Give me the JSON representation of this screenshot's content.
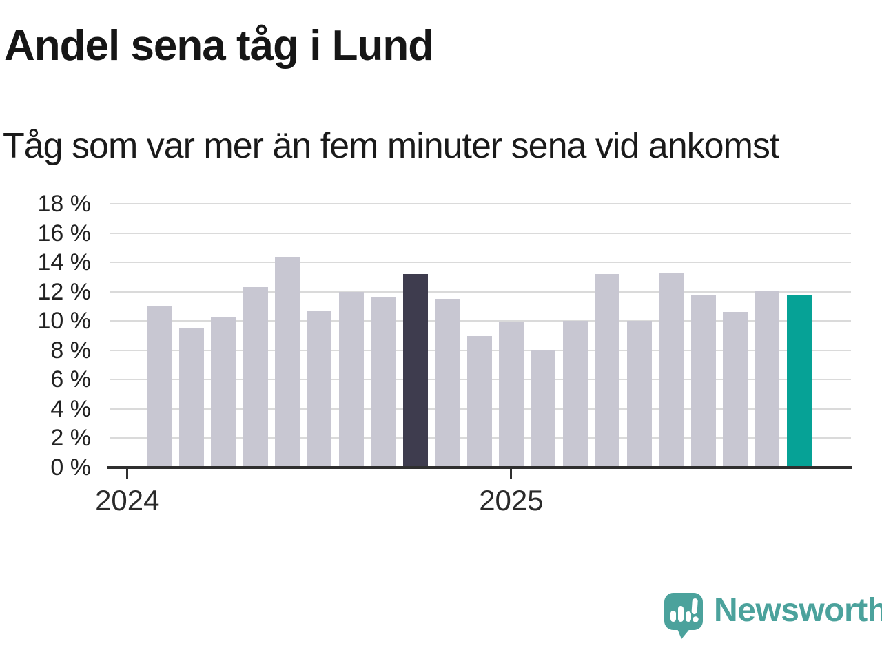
{
  "header": {
    "title": "Andel sena tåg i Lund",
    "subtitle": "Tåg som var mer än fem minuter sena vid ankomst"
  },
  "branding": {
    "wordmark": "Newsworthy",
    "logo_icon": "speech-bubble-with-bar-chart-and-exclamation"
  },
  "colors": {
    "background": "#ffffff",
    "bar_default": "#c8c7d2",
    "bar_dark_highlight": "#3e3c4e",
    "bar_teal_highlight": "#06a296",
    "gridline": "#dadada",
    "axis": "#2f2f2f",
    "title_text": "#161616",
    "tick_label": "#222222",
    "logo_teal": "#4ba29c"
  },
  "chart_data": {
    "type": "bar",
    "title": "Andel sena tåg i Lund",
    "subtitle": "Tåg som var mer än fem minuter sena vid ankomst",
    "xlabel": "",
    "ylabel": "",
    "unit": "%",
    "ylim": [
      0,
      18
    ],
    "grid": "horizontal",
    "legend_position": "none",
    "y_tick_values": [
      0,
      2,
      4,
      6,
      8,
      10,
      12,
      14,
      16,
      18
    ],
    "y_tick_suffix": " %",
    "x_axis_ticks": [
      {
        "label": "2024",
        "month_index": 0
      },
      {
        "label": "2025",
        "month_index": 12
      }
    ],
    "categories": [
      "2024-01",
      "2024-02",
      "2024-03",
      "2024-04",
      "2024-05",
      "2024-06",
      "2024-07",
      "2024-08",
      "2024-09",
      "2024-10",
      "2024-11",
      "2024-12",
      "2025-01",
      "2025-02",
      "2025-03",
      "2025-04",
      "2025-05",
      "2025-06",
      "2025-07",
      "2025-08",
      "2025-09"
    ],
    "values": [
      11.0,
      9.5,
      10.3,
      12.3,
      14.4,
      10.7,
      12.0,
      11.6,
      13.2,
      11.5,
      9.0,
      9.9,
      8.0,
      10.0,
      13.2,
      10.0,
      13.3,
      11.8,
      10.6,
      12.1,
      11.8
    ],
    "highlights": {
      "dark_index": 8,
      "teal_index": 20
    }
  }
}
